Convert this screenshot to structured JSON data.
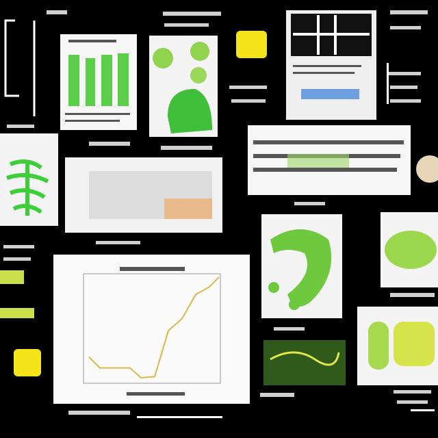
{
  "chart_data": {
    "type": "line",
    "x": [
      4,
      12,
      34,
      42,
      52,
      62,
      72,
      82,
      92,
      99
    ],
    "values": [
      24,
      14,
      14,
      5,
      6,
      48,
      59,
      81,
      88,
      97
    ],
    "xlim": [
      0,
      100
    ],
    "ylim": [
      0,
      100
    ],
    "color": "#d9b84a"
  }
}
